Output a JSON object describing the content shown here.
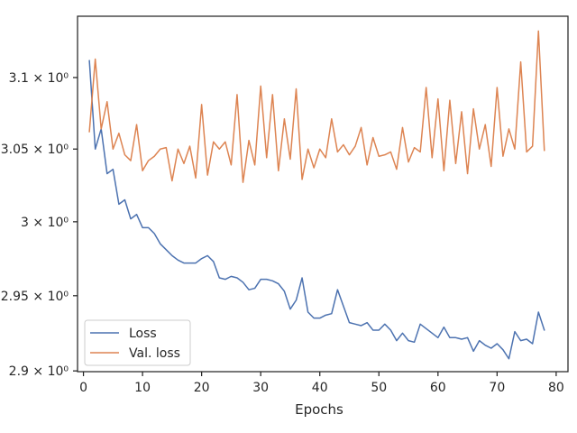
{
  "chart_data": {
    "type": "line",
    "xlabel": "Epochs",
    "ylabel": "",
    "yscale": "log",
    "grid": false,
    "legend_position": "lower-left",
    "xlim": [
      -1,
      82
    ],
    "ylim": [
      2.8995,
      3.1435
    ],
    "xticks": [
      0,
      10,
      20,
      30,
      40,
      50,
      60,
      70,
      80
    ],
    "xtick_labels": [
      "0",
      "10",
      "20",
      "30",
      "40",
      "50",
      "60",
      "70",
      "80"
    ],
    "yticks": [
      2.9,
      2.95,
      3.0,
      3.05,
      3.1
    ],
    "ytick_labels": [
      "2.9 × 10⁰",
      "2.95 × 10⁰",
      "3 × 10⁰",
      "3.05 × 10⁰",
      "3.1 × 10⁰"
    ],
    "x": [
      1,
      2,
      3,
      4,
      5,
      6,
      7,
      8,
      9,
      10,
      11,
      12,
      13,
      14,
      15,
      16,
      17,
      18,
      19,
      20,
      21,
      22,
      23,
      24,
      25,
      26,
      27,
      28,
      29,
      30,
      31,
      32,
      33,
      34,
      35,
      36,
      37,
      38,
      39,
      40,
      41,
      42,
      43,
      44,
      45,
      46,
      47,
      48,
      49,
      50,
      51,
      52,
      53,
      54,
      55,
      56,
      57,
      58,
      59,
      60,
      61,
      62,
      63,
      64,
      65,
      66,
      67,
      68,
      69,
      70,
      71,
      72,
      73,
      74,
      75,
      76,
      77,
      78
    ],
    "series": [
      {
        "name": "Loss",
        "color": "#4c72b0",
        "values": [
          3.112,
          3.05,
          3.064,
          3.033,
          3.036,
          3.012,
          3.015,
          3.002,
          3.005,
          2.996,
          2.996,
          2.992,
          2.985,
          2.981,
          2.977,
          2.974,
          2.972,
          2.972,
          2.972,
          2.975,
          2.977,
          2.973,
          2.962,
          2.961,
          2.963,
          2.962,
          2.959,
          2.954,
          2.955,
          2.961,
          2.961,
          2.96,
          2.958,
          2.953,
          2.941,
          2.947,
          2.962,
          2.939,
          2.935,
          2.935,
          2.937,
          2.938,
          2.954,
          2.943,
          2.932,
          2.931,
          2.93,
          2.932,
          2.927,
          2.927,
          2.931,
          2.927,
          2.92,
          2.925,
          2.92,
          2.919,
          2.931,
          2.928,
          2.925,
          2.922,
          2.929,
          2.922,
          2.922,
          2.921,
          2.922,
          2.913,
          2.92,
          2.917,
          2.915,
          2.918,
          2.914,
          2.908,
          2.926,
          2.92,
          2.921,
          2.918,
          2.939,
          2.927
        ]
      },
      {
        "name": "Val. loss",
        "color": "#dd8452",
        "values": [
          3.062,
          3.113,
          3.064,
          3.083,
          3.05,
          3.061,
          3.046,
          3.042,
          3.067,
          3.035,
          3.042,
          3.045,
          3.05,
          3.051,
          3.028,
          3.05,
          3.04,
          3.052,
          3.03,
          3.081,
          3.032,
          3.055,
          3.05,
          3.055,
          3.039,
          3.088,
          3.027,
          3.056,
          3.039,
          3.094,
          3.044,
          3.088,
          3.035,
          3.071,
          3.043,
          3.092,
          3.029,
          3.05,
          3.037,
          3.05,
          3.044,
          3.071,
          3.048,
          3.053,
          3.046,
          3.052,
          3.065,
          3.039,
          3.058,
          3.045,
          3.046,
          3.048,
          3.036,
          3.065,
          3.041,
          3.051,
          3.048,
          3.093,
          3.044,
          3.085,
          3.035,
          3.084,
          3.04,
          3.076,
          3.033,
          3.078,
          3.05,
          3.067,
          3.038,
          3.093,
          3.045,
          3.064,
          3.05,
          3.111,
          3.048,
          3.052,
          3.133,
          3.049
        ]
      }
    ]
  }
}
